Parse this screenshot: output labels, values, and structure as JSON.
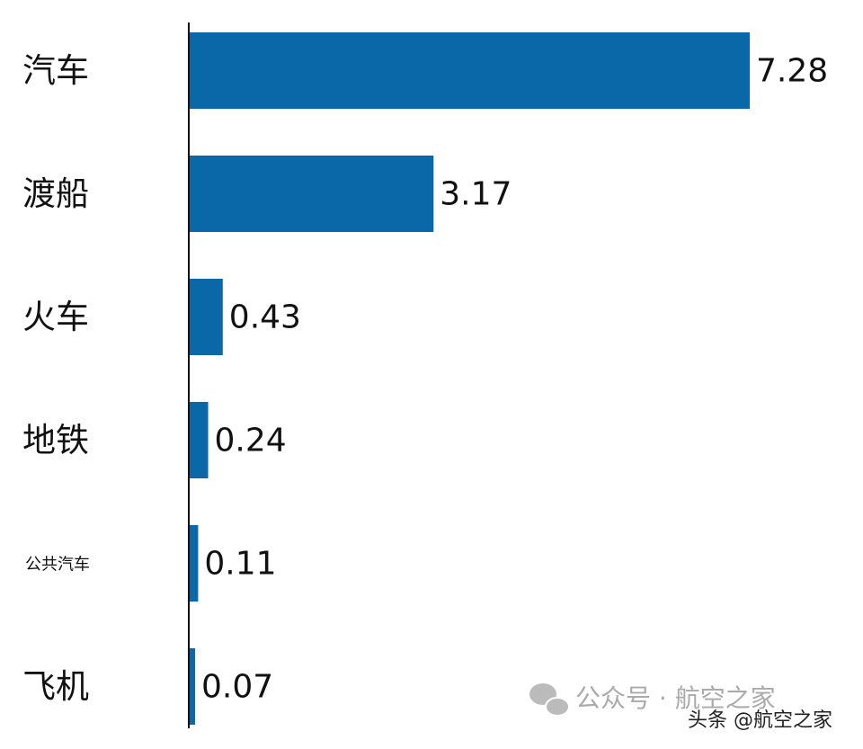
{
  "chart_data": {
    "type": "bar",
    "orientation": "horizontal",
    "categories": [
      "汽车",
      "渡船",
      "火车",
      "地铁",
      "公共汽车",
      "飞机"
    ],
    "values": [
      7.28,
      3.17,
      0.43,
      0.24,
      0.11,
      0.07
    ],
    "color": "#0b68a8"
  },
  "watermark": {
    "wechat": "公众号 · 航空之家",
    "toutiao": "头条 @航空之家"
  }
}
